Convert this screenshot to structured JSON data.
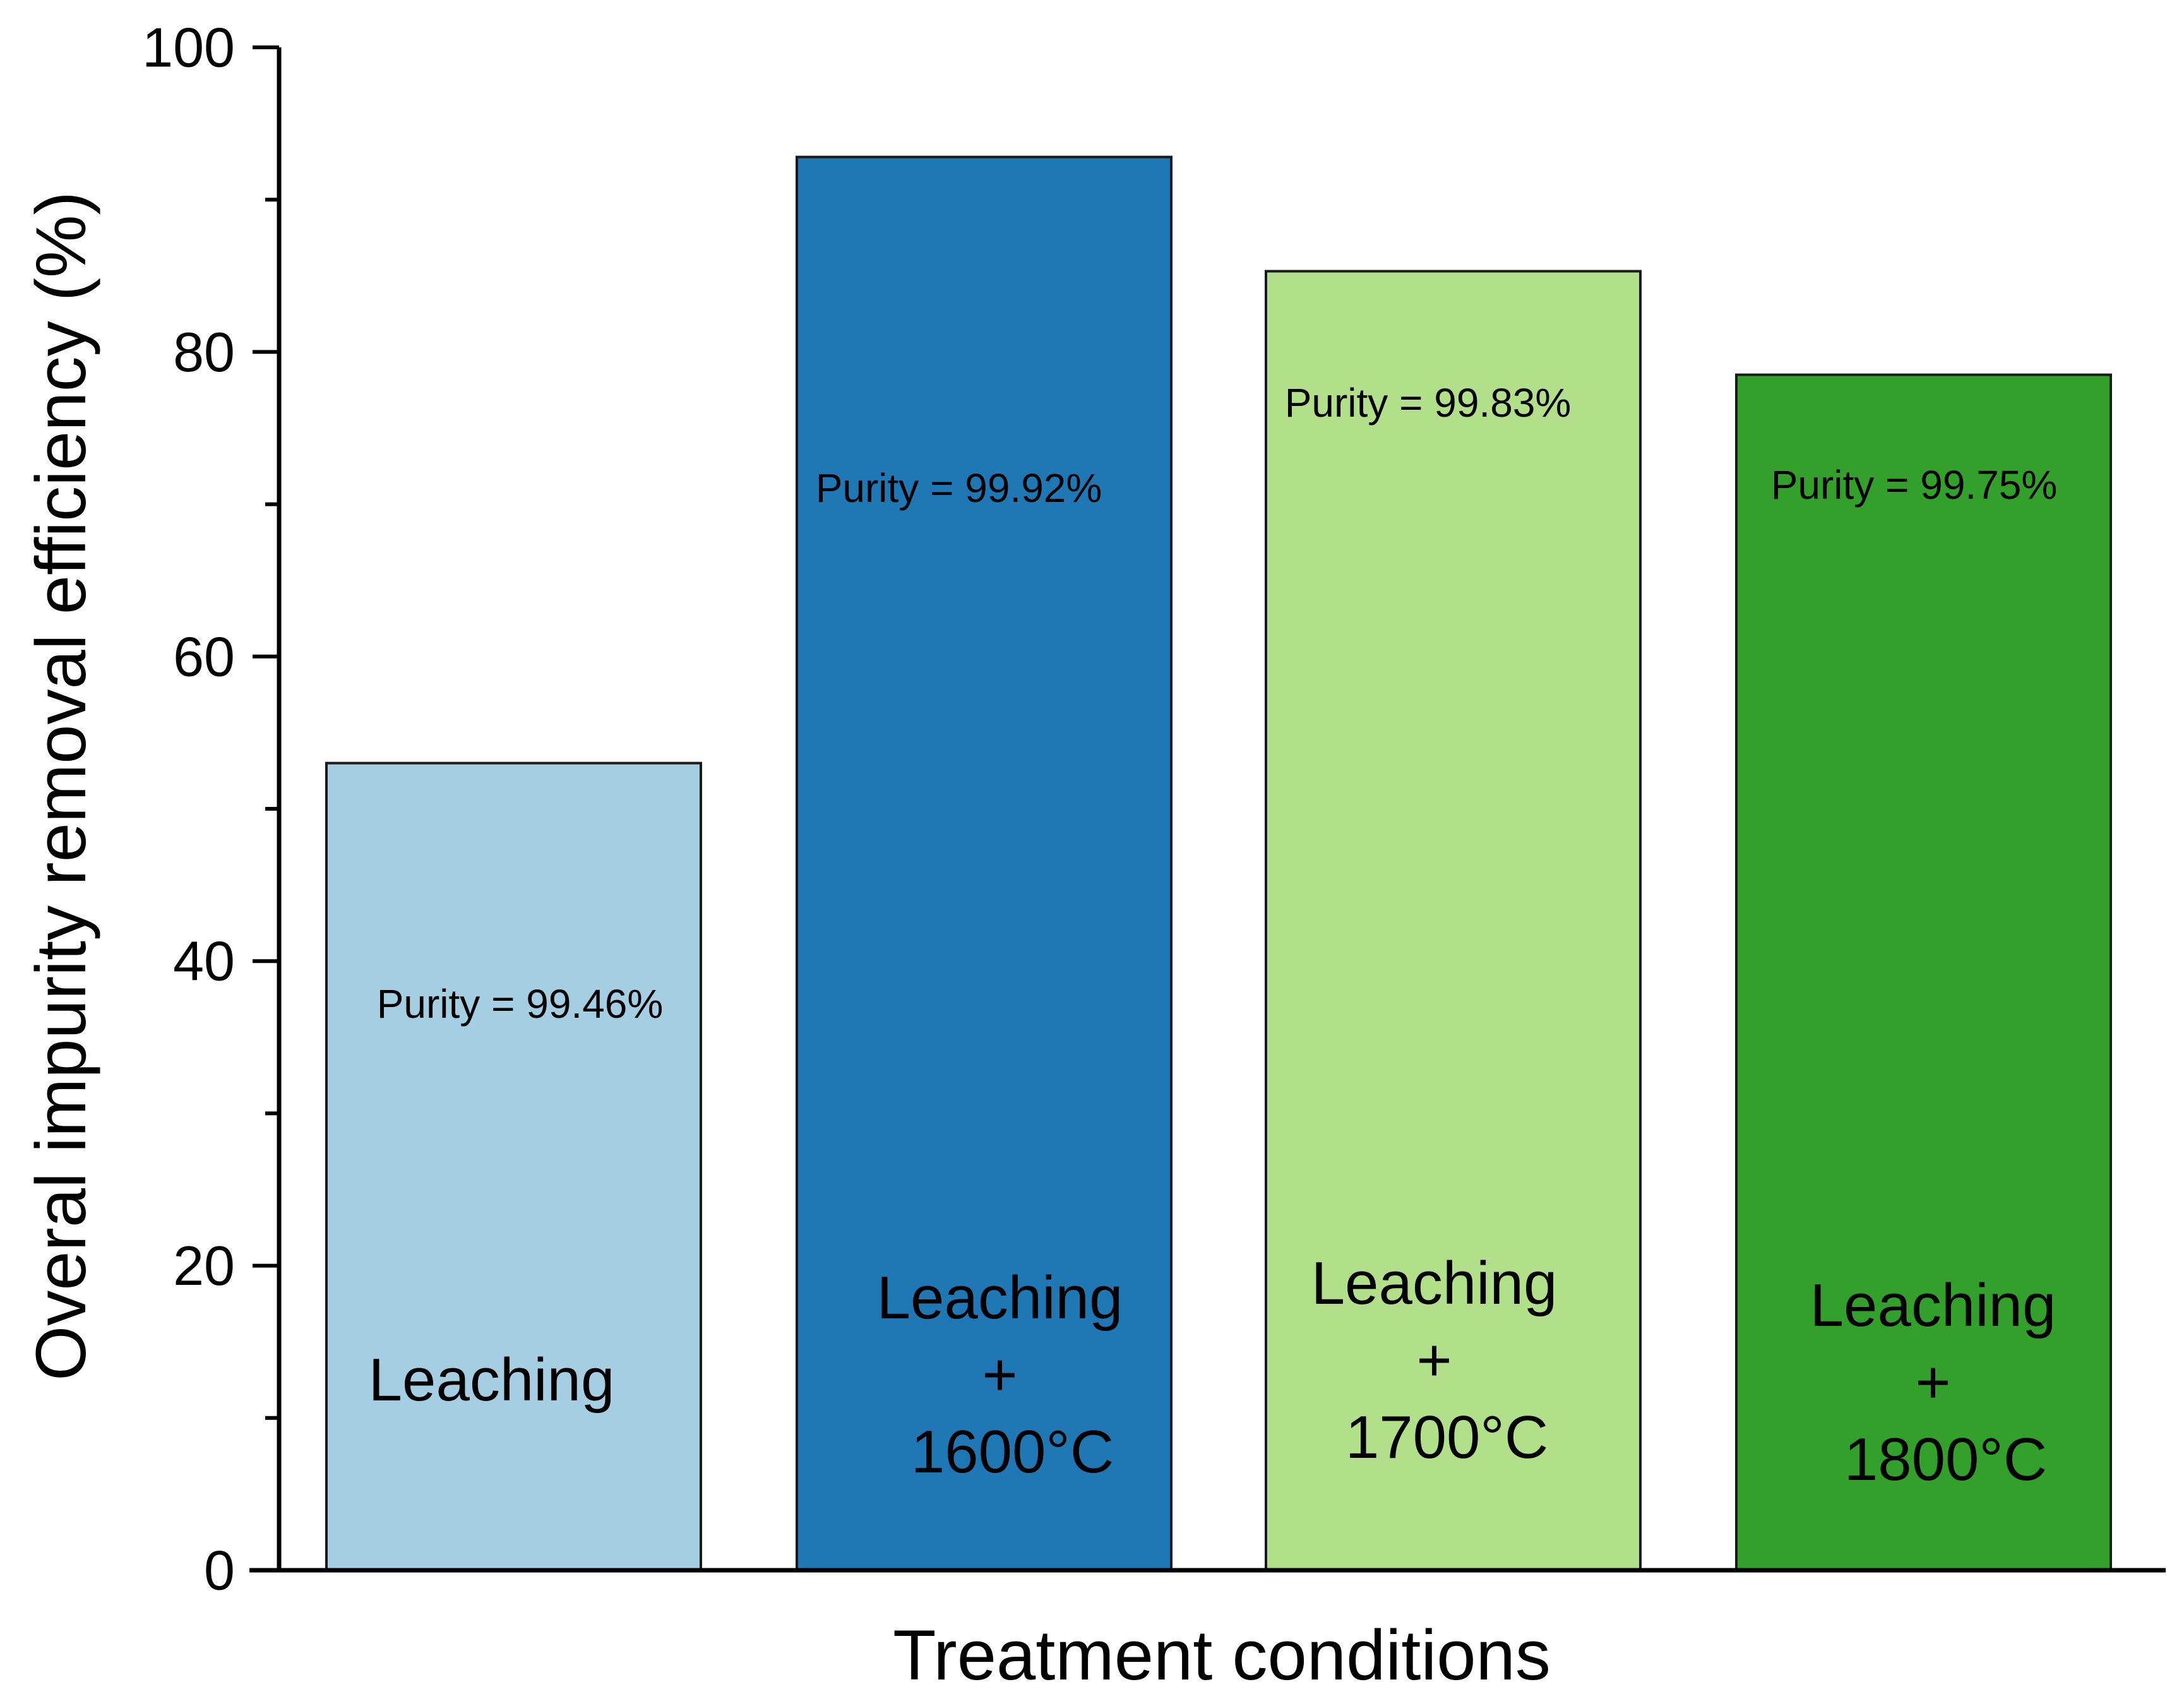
{
  "chart_data": {
    "type": "bar",
    "title": "",
    "xlabel": "Treatment conditions",
    "ylabel": "Overal impurity removal efficiency (%)",
    "ylim": [
      0,
      100
    ],
    "yticks": [
      0,
      20,
      40,
      60,
      80,
      100
    ],
    "categories": [
      "Leaching",
      "Leaching + 1600°C",
      "Leaching + 1700°C",
      "Leaching + 1800°C"
    ],
    "values": [
      53,
      92.8,
      85.3,
      78.5
    ],
    "bar_colors": [
      "#a6cee3",
      "#1f78b4",
      "#b2df8a",
      "#33a02c"
    ],
    "bars": [
      {
        "category": "Leaching",
        "value": 53,
        "label_lines": [
          "Leaching"
        ],
        "annotation": "Purity = 99.46%"
      },
      {
        "category": "Leaching + 1600°C",
        "value": 92.8,
        "label_lines": [
          "Leaching",
          "+",
          "1600°C"
        ],
        "annotation": "Purity = 99.92%"
      },
      {
        "category": "Leaching + 1700°C",
        "value": 85.3,
        "label_lines": [
          "Leaching",
          "+",
          "1700°C"
        ],
        "annotation": "Purity = 99.83%"
      },
      {
        "category": "Leaching + 1800°C",
        "value": 78.5,
        "label_lines": [
          "Leaching",
          "+",
          "1800°C"
        ],
        "annotation": "Purity = 99.75%"
      }
    ],
    "grid": false,
    "legend": "none"
  }
}
